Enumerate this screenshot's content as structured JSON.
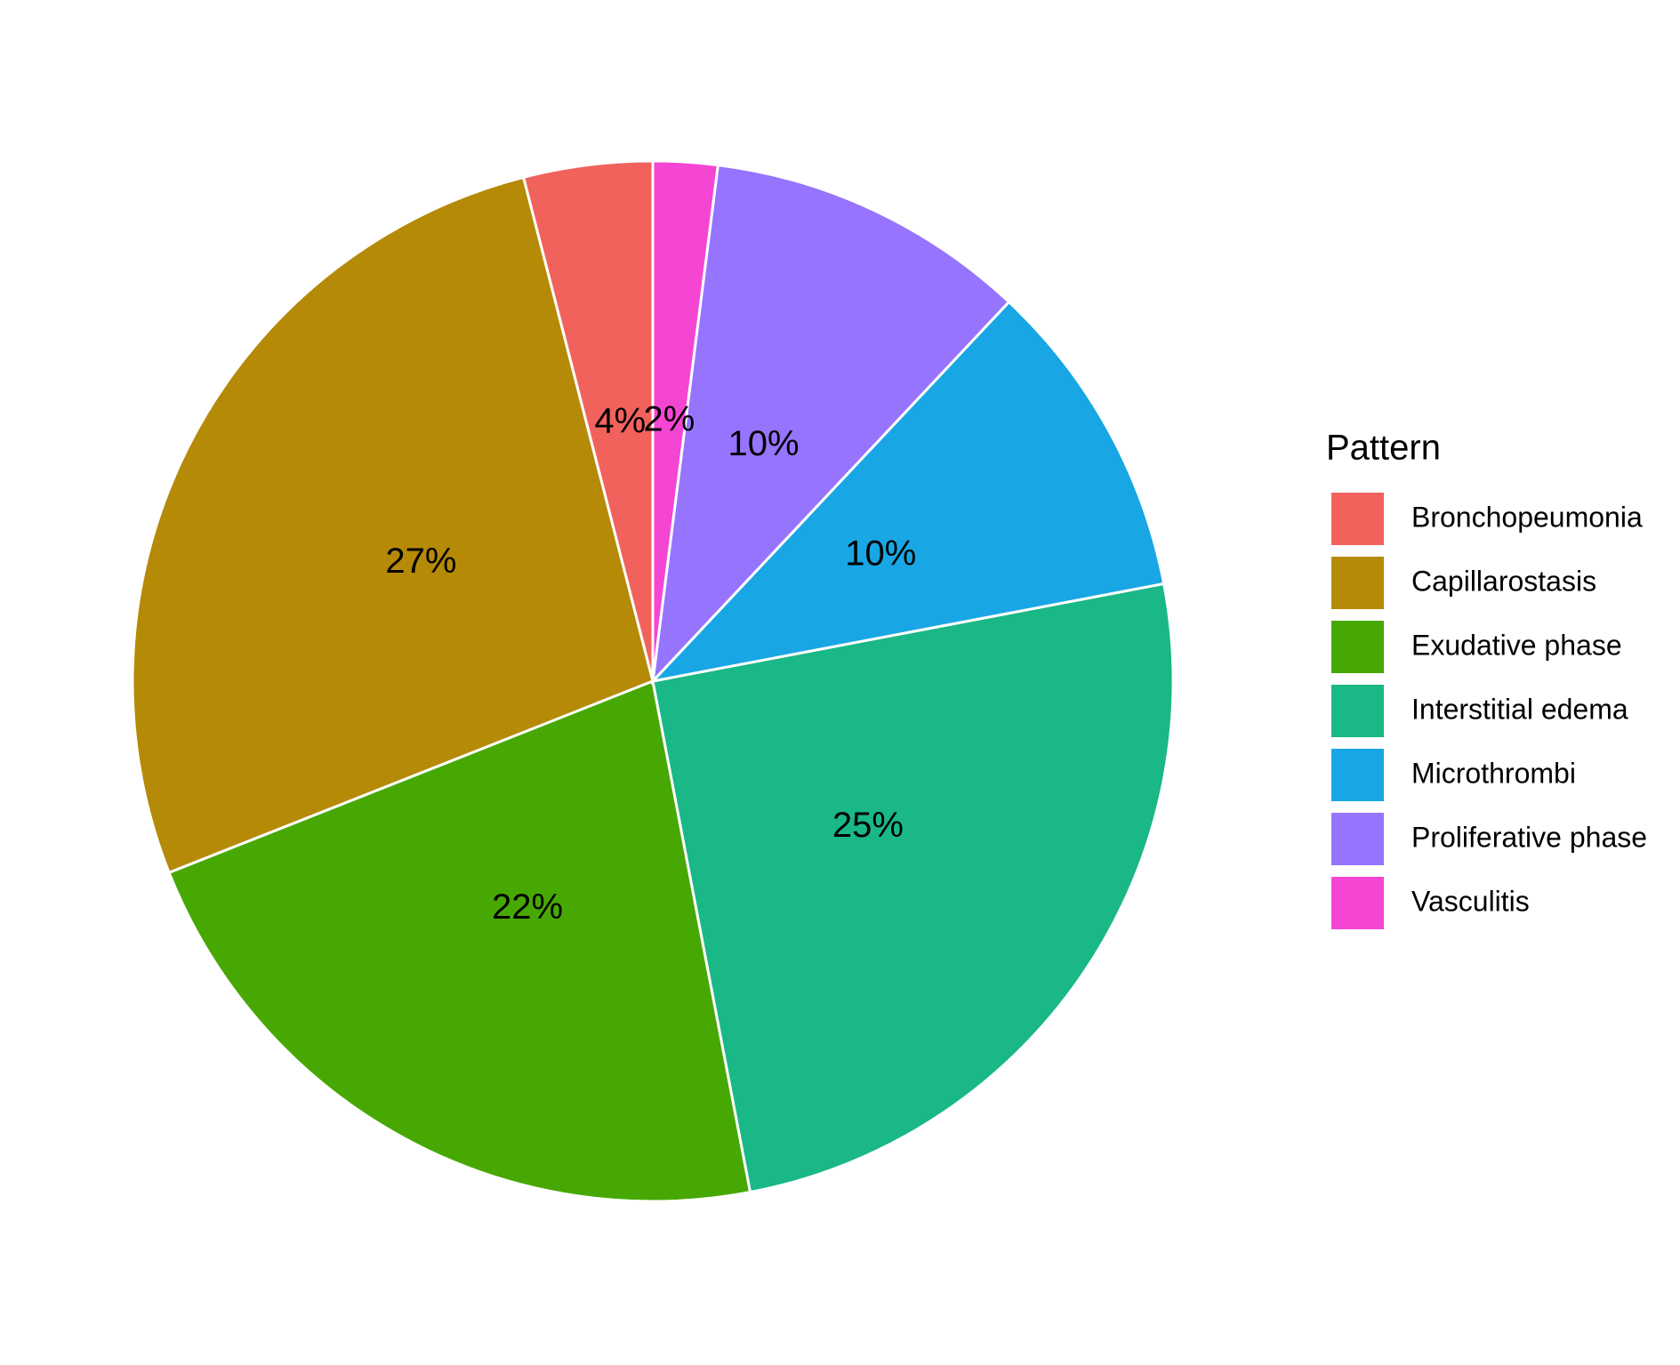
{
  "chart_data": {
    "type": "pie",
    "legend_title": "Pattern",
    "legend": "right",
    "categories": [
      "Bronchopeumonia",
      "Capillarostasis",
      "Exudative phase",
      "Interstitial edema",
      "Microthrombi",
      "Proliferative phase",
      "Vasculitis"
    ],
    "values": [
      4,
      27,
      22,
      25,
      10,
      10,
      2
    ],
    "value_labels": [
      "4%",
      "27%",
      "22%",
      "25%",
      "10%",
      "10%",
      "2%"
    ],
    "colors": [
      "#f2625d",
      "#b58a07",
      "#47a804",
      "#1ab787",
      "#19a6e4",
      "#9674fd",
      "#f545d3"
    ]
  }
}
